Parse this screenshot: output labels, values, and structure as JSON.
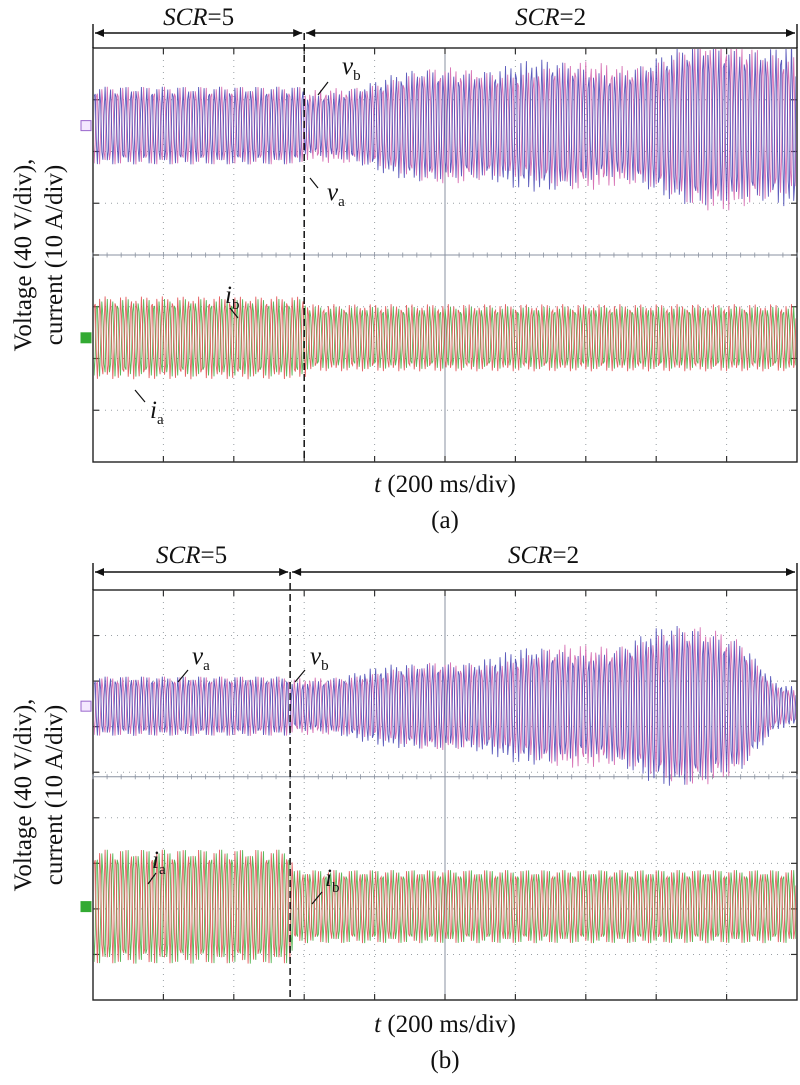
{
  "colors": {
    "v_a": "#d05aa8",
    "v_b": "#3f3fb0",
    "i_a": "#3dab3d",
    "i_b": "#e0484a",
    "grid": "#9aa0a6",
    "channel_voltage_marker": "#9966cc",
    "channel_current_marker": "#33aa33"
  },
  "chart_data": [
    {
      "type": "line",
      "panel": "(a)",
      "xlabel_var": "t",
      "xlabel_unit": " (200 ms/div)",
      "ylabel_line1": "Voltage (40 V/div),",
      "ylabel_line2": "current (10 A/div)",
      "divisions": {
        "x": 10,
        "y": 8
      },
      "regions": [
        {
          "label_var": "SCR",
          "label_value": "=5",
          "start_div": 0,
          "end_div": 3.0
        },
        {
          "label_var": "SCR",
          "label_value": "=2",
          "start_div": 3.0,
          "end_div": 10
        }
      ],
      "switch_div": 3.0,
      "series": [
        {
          "name": "v_a",
          "label_main": "v",
          "label_sub": "a",
          "kind": "voltage",
          "envelope_div": [
            [
              0,
              0.75
            ],
            [
              3.0,
              0.75
            ],
            [
              3.3,
              0.85
            ],
            [
              5,
              1.15
            ],
            [
              6,
              1.45
            ],
            [
              8,
              1.6
            ],
            [
              10,
              1.75
            ]
          ]
        },
        {
          "name": "v_b",
          "label_main": "v",
          "label_sub": "b",
          "kind": "voltage",
          "envelope_div": [
            [
              0,
              0.75
            ],
            [
              3.0,
              0.75
            ],
            [
              3.3,
              0.9
            ],
            [
              5,
              1.15
            ],
            [
              6,
              1.45
            ],
            [
              8,
              1.6
            ],
            [
              10,
              1.8
            ]
          ]
        },
        {
          "name": "i_a",
          "label_main": "i",
          "label_sub": "a",
          "kind": "current",
          "envelope_div": [
            [
              0,
              0.75
            ],
            [
              3.0,
              0.75
            ],
            [
              3.05,
              0.6
            ],
            [
              10,
              0.6
            ]
          ]
        },
        {
          "name": "i_b",
          "label_main": "i",
          "label_sub": "b",
          "kind": "current",
          "envelope_div": [
            [
              0,
              0.8
            ],
            [
              3.0,
              0.8
            ],
            [
              3.05,
              0.65
            ],
            [
              10,
              0.65
            ]
          ]
        }
      ]
    },
    {
      "type": "line",
      "panel": "(b)",
      "xlabel_var": "t",
      "xlabel_unit": " (200 ms/div)",
      "ylabel_line1": "Voltage (40 V/div),",
      "ylabel_line2": "current (10 A/div)",
      "divisions": {
        "x": 10,
        "y": 9
      },
      "regions": [
        {
          "label_var": "SCR",
          "label_value": "=5",
          "start_div": 0,
          "end_div": 2.8
        },
        {
          "label_var": "SCR",
          "label_value": "=2",
          "start_div": 2.8,
          "end_div": 10
        }
      ],
      "switch_div": 2.8,
      "series": [
        {
          "name": "v_a",
          "label_main": "v",
          "label_sub": "a",
          "kind": "voltage",
          "envelope_div": [
            [
              0,
              0.65
            ],
            [
              2.8,
              0.65
            ],
            [
              3.0,
              0.7
            ],
            [
              4.5,
              0.9
            ],
            [
              6,
              1.5
            ],
            [
              8,
              1.8
            ],
            [
              9.2,
              1.7
            ],
            [
              9.7,
              0.6
            ],
            [
              10,
              0.45
            ]
          ]
        },
        {
          "name": "v_b",
          "label_main": "v",
          "label_sub": "b",
          "kind": "voltage",
          "envelope_div": [
            [
              0,
              0.65
            ],
            [
              2.8,
              0.65
            ],
            [
              3.0,
              0.75
            ],
            [
              4.5,
              0.95
            ],
            [
              6,
              1.5
            ],
            [
              8,
              1.85
            ],
            [
              9.2,
              1.75
            ],
            [
              9.7,
              0.6
            ],
            [
              10,
              0.45
            ]
          ]
        },
        {
          "name": "i_a",
          "label_main": "i",
          "label_sub": "a",
          "kind": "current",
          "envelope_div": [
            [
              0,
              1.25
            ],
            [
              2.8,
              1.25
            ],
            [
              2.85,
              0.8
            ],
            [
              10,
              0.8
            ]
          ]
        },
        {
          "name": "i_b",
          "label_main": "i",
          "label_sub": "b",
          "kind": "current",
          "envelope_div": [
            [
              0,
              1.25
            ],
            [
              2.8,
              1.25
            ],
            [
              2.85,
              0.8
            ],
            [
              10,
              0.8
            ]
          ]
        }
      ]
    }
  ]
}
